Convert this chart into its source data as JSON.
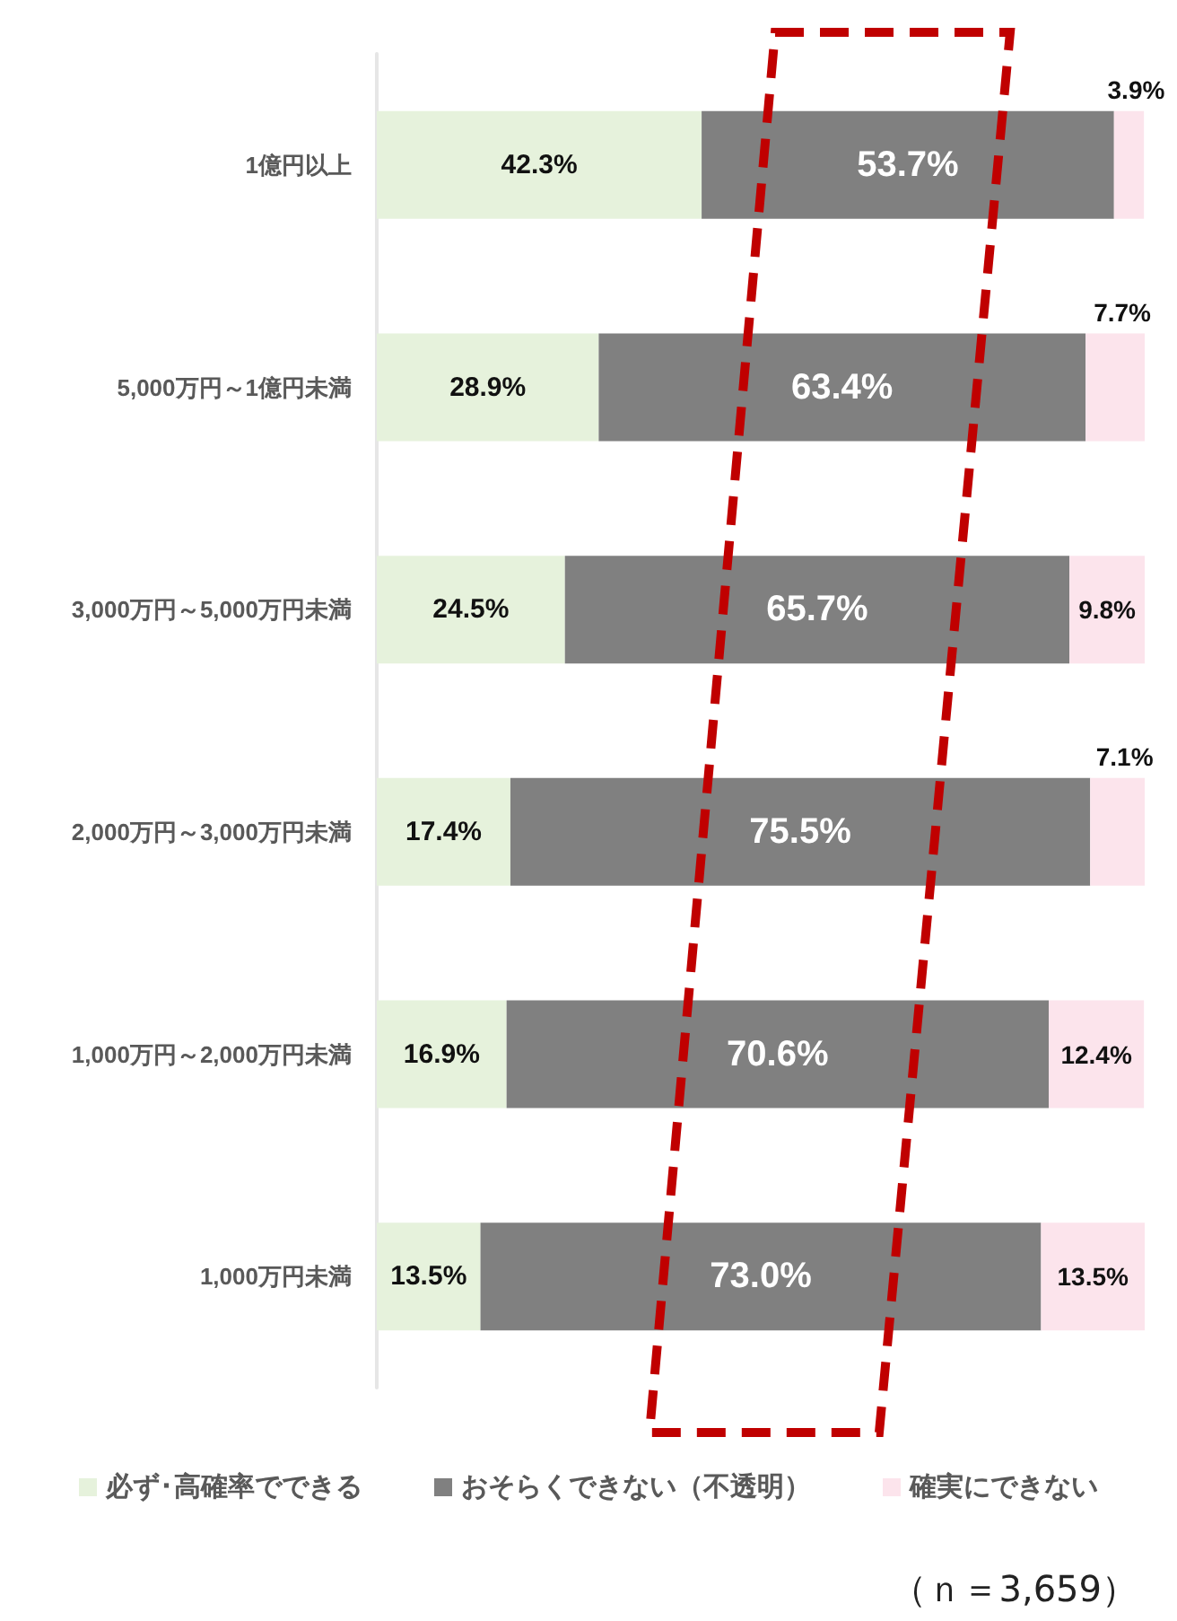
{
  "chart_data": {
    "type": "bar",
    "orientation": "horizontal",
    "stacked": true,
    "categories": [
      "1億円以上",
      "5,000万円～1億円未満",
      "3,000万円～5,000万円未満",
      "2,000万円～3,000万円未満",
      "1,000万円～2,000万円未満",
      "1,000万円未満"
    ],
    "xlim": [
      0,
      100
    ],
    "series": [
      {
        "name": "必ず･高確率でできる",
        "color": "#e6f2dc",
        "values": [
          42.3,
          28.9,
          24.5,
          17.4,
          16.9,
          13.5
        ],
        "value_labels": [
          "42.3%",
          "28.9%",
          "24.5%",
          "17.4%",
          "16.9%",
          "13.5%"
        ]
      },
      {
        "name": "おそらくできない（不透明）",
        "color": "#808080",
        "values": [
          53.7,
          63.4,
          65.7,
          75.5,
          70.6,
          73.0
        ],
        "value_labels": [
          "53.7%",
          "63.4%",
          "65.7%",
          "75.5%",
          "70.6%",
          "73.0%"
        ]
      },
      {
        "name": "確実にできない",
        "color": "#fce4ec",
        "values": [
          3.9,
          7.7,
          9.8,
          7.1,
          12.4,
          13.5
        ],
        "value_labels": [
          "3.9%",
          "7.7%",
          "9.8%",
          "7.1%",
          "12.4%",
          "13.5%"
        ]
      }
    ],
    "legend": "bottom",
    "annotations": [
      "（ｎ＝3,659）"
    ]
  }
}
